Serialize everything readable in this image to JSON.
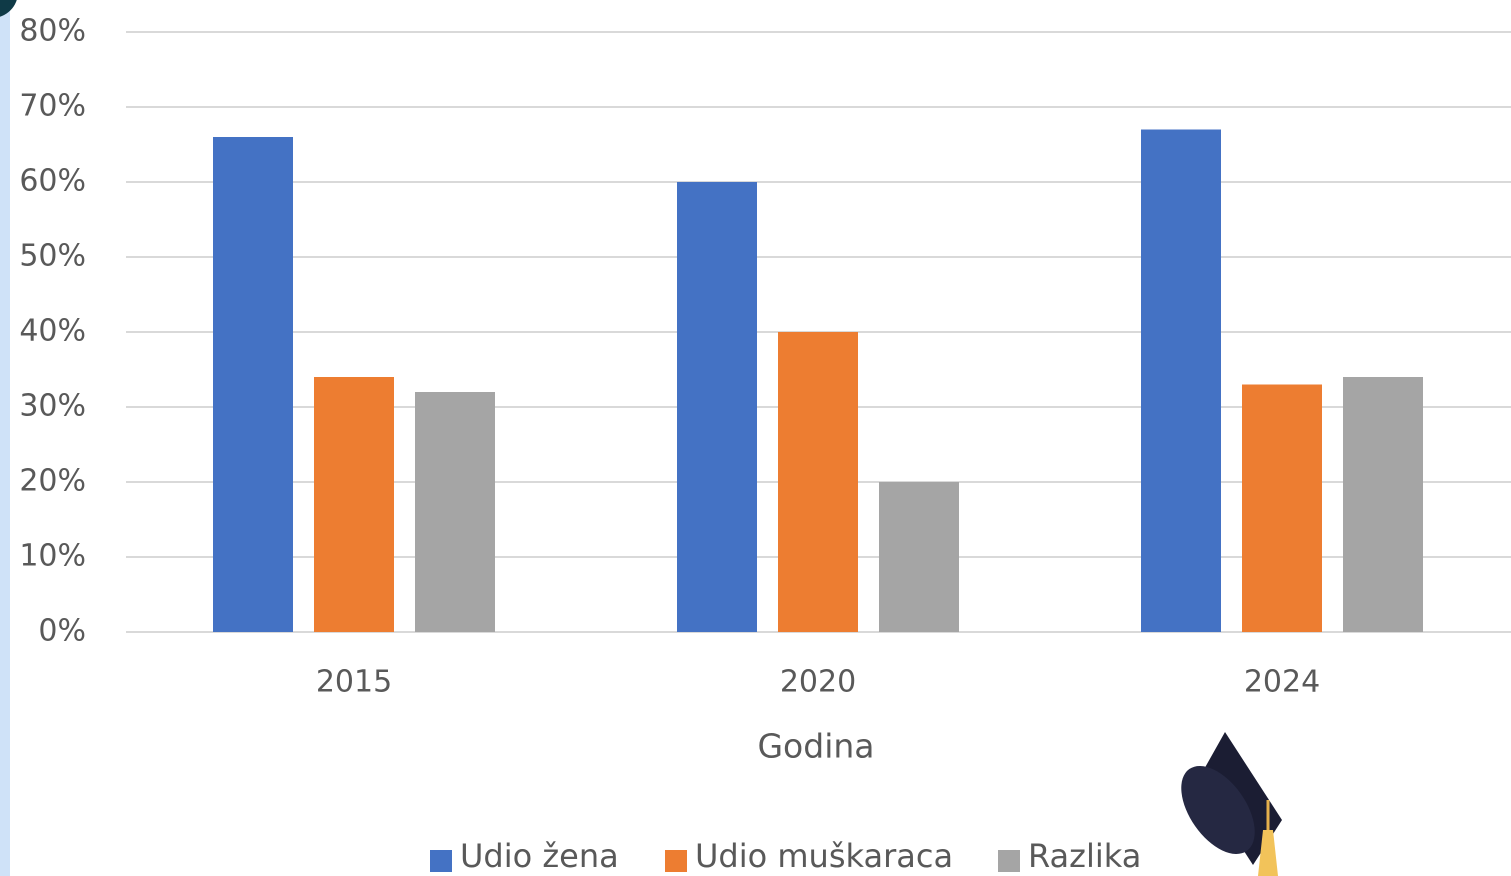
{
  "chart_data": {
    "type": "bar",
    "x_label": "Godina",
    "categories": [
      "2015",
      "2020",
      "2024"
    ],
    "series": [
      {
        "name": "Udio žena",
        "color": "#4472c4",
        "values": [
          66,
          60,
          67
        ]
      },
      {
        "name": "Udio muškaraca",
        "color": "#ed7d31",
        "values": [
          34,
          40,
          33
        ]
      },
      {
        "name": "Razlika",
        "color": "#a5a5a5",
        "values": [
          32,
          20,
          34
        ]
      }
    ],
    "ylim": [
      0,
      80
    ],
    "yticks": [
      {
        "value": 0,
        "label": "0%"
      },
      {
        "value": 10,
        "label": "10%"
      },
      {
        "value": 20,
        "label": "20%"
      },
      {
        "value": 30,
        "label": "30%"
      },
      {
        "value": 40,
        "label": "40%"
      },
      {
        "value": 50,
        "label": "50%"
      },
      {
        "value": 60,
        "label": "60%"
      },
      {
        "value": 70,
        "label": "70%"
      },
      {
        "value": 80,
        "label": "80%"
      }
    ],
    "grid": true,
    "legend": "bottom"
  }
}
